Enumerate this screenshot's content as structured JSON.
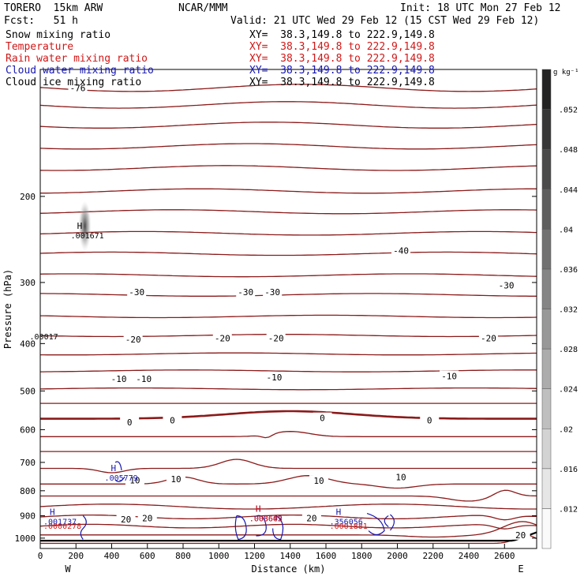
{
  "header": {
    "model": "TORERO  15km ARW",
    "center": "NCAR/MMM",
    "init": "Init: 18 UTC Mon 27 Feb 12",
    "fcst": "Fcst:   51 h",
    "valid": "Valid: 21 UTC Wed 29 Feb 12 (15 CST Wed 29 Feb 12)"
  },
  "fields": [
    {
      "name": "Snow mixing ratio",
      "xy": "XY=  38.3,149.8 to 222.9,149.8",
      "color": "#000000"
    },
    {
      "name": "Temperature",
      "xy": "XY=  38.3,149.8 to 222.9,149.8",
      "color": "#d01818"
    },
    {
      "name": "Rain water mixing ratio",
      "xy": "XY=  38.3,149.8 to 222.9,149.8",
      "color": "#d01818"
    },
    {
      "name": "Cloud water mixing ratio",
      "xy": "XY=  38.3,149.8 to 222.9,149.8",
      "color": "#1818b0"
    },
    {
      "name": "Cloud ice mixing ratio",
      "xy": "XY=  38.3,149.8 to 222.9,149.8",
      "color": "#000000"
    }
  ],
  "chart_data": {
    "type": "contour",
    "xlabel": "Distance (km)",
    "ylabel": "Pressure (hPa)",
    "xlim": [
      0,
      2780
    ],
    "ylim": [
      1050,
      110
    ],
    "x_ticks": [
      0,
      200,
      400,
      600,
      800,
      1000,
      1200,
      1400,
      1600,
      1800,
      2000,
      2200,
      2400,
      2600
    ],
    "y_ticks": [
      200,
      300,
      400,
      500,
      600,
      700,
      800,
      900,
      1000
    ],
    "x_end_labels": {
      "left": "W",
      "right": "E"
    },
    "colorbar": {
      "unit": "g kg⁻¹",
      "levels": [
        ".012",
        ".016",
        ".02",
        ".024",
        ".028",
        ".032",
        ".036",
        ".04",
        ".044",
        ".048",
        ".052"
      ]
    },
    "temperature_contours": [
      {
        "level": -76,
        "label": "-76",
        "label_points": [
          [
            210,
            120
          ]
        ]
      },
      {
        "level": -40,
        "label": "-40",
        "label_points": [
          [
            2020,
            258
          ]
        ]
      },
      {
        "level": -30,
        "label": "-30",
        "label_points": [
          [
            540,
            314
          ],
          [
            1150,
            314
          ],
          [
            1300,
            314
          ],
          [
            2610,
            304
          ]
        ]
      },
      {
        "level": -20,
        "label": "-20",
        "label_points": [
          [
            520,
            392
          ],
          [
            1020,
            390
          ],
          [
            1320,
            390
          ],
          [
            2510,
            390
          ]
        ]
      },
      {
        "level": -10,
        "label": "-10",
        "label_points": [
          [
            440,
            472
          ],
          [
            580,
            472
          ],
          [
            1310,
            469
          ],
          [
            2290,
            466
          ]
        ]
      },
      {
        "level": 0,
        "label": "0",
        "label_points": [
          [
            500,
            579
          ],
          [
            740,
            574
          ],
          [
            1580,
            568
          ],
          [
            2180,
            574
          ]
        ]
      },
      {
        "level": 10,
        "label": "10",
        "label_points": [
          [
            530,
            762
          ],
          [
            760,
            757
          ],
          [
            1560,
            763
          ],
          [
            2020,
            750
          ]
        ]
      },
      {
        "level": 20,
        "label": "20",
        "label_points": [
          [
            480,
            915
          ],
          [
            600,
            910
          ],
          [
            1520,
            910
          ],
          [
            2690,
            985
          ]
        ]
      }
    ],
    "extrema": [
      {
        "symbol": "H",
        "value": ".001671",
        "x": 250,
        "p": 240,
        "field": "Snow mixing ratio"
      },
      {
        "symbol": "",
        "value": ".00017",
        "x": 20,
        "p": 386,
        "field": "Cloud ice mixing ratio"
      },
      {
        "symbol": "H",
        "value": ".005779",
        "x": 440,
        "p": 752,
        "field": "Cloud water mixing ratio"
      },
      {
        "symbol": "H",
        "value": ".001737",
        "x": 0,
        "p": 923,
        "field": "Cloud water mixing ratio"
      },
      {
        "symbol": "",
        "value": ".0000278",
        "x": 0,
        "p": 943,
        "field": "Rain water mixing ratio"
      },
      {
        "symbol": "H",
        "value": ".008642",
        "x": 1250,
        "p": 910,
        "field": "Cloud water mixing ratio"
      },
      {
        "symbol": "H",
        "value": ".003605",
        "x": 1250,
        "p": 910,
        "field": "Rain water mixing ratio"
      },
      {
        "symbol": "H",
        "value": ".356056",
        "x": 1700,
        "p": 923,
        "field": "Cloud water mixing ratio"
      },
      {
        "symbol": "",
        "value": ".0001881",
        "x": 1700,
        "p": 943,
        "field": "Rain water mixing ratio"
      }
    ]
  },
  "colors": {
    "contour": "#8b1a1a",
    "cloud_water": "#1818b0",
    "rain": "#d01818",
    "terrain": "#000000"
  }
}
